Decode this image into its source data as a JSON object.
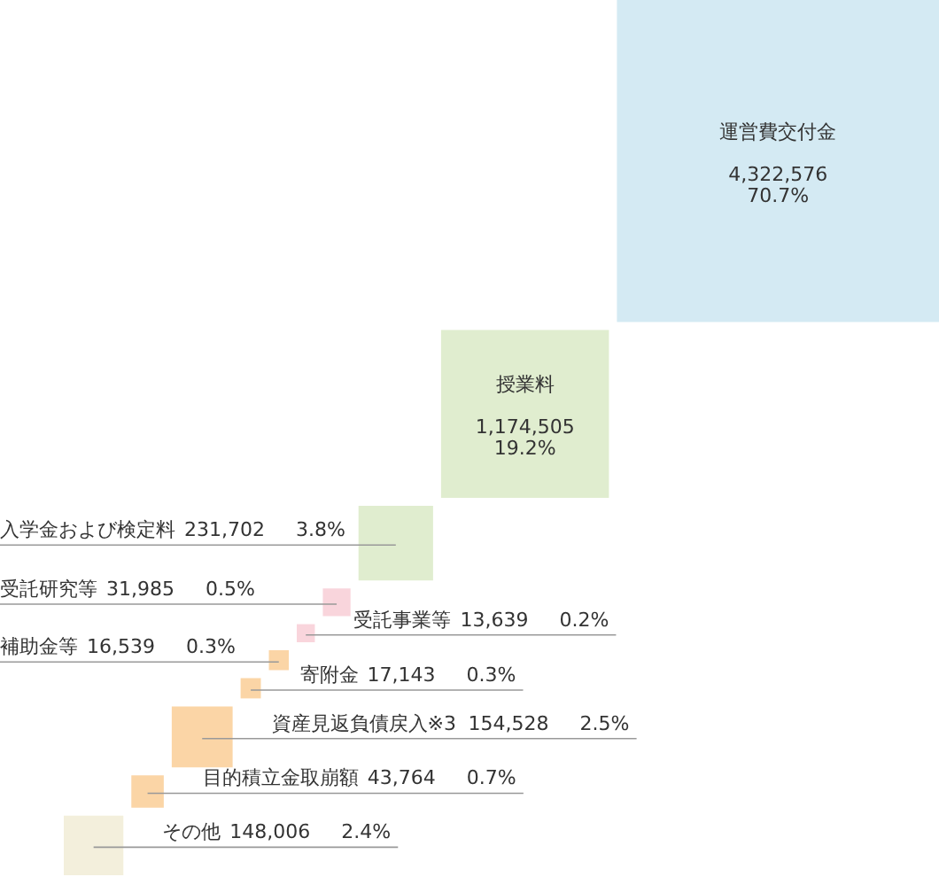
{
  "chart_data": {
    "type": "other",
    "categories": [
      "運営費交付金",
      "授業料",
      "入学金および検定料",
      "受託研究等",
      "受託事業等",
      "補助金等",
      "寄附金",
      "資産見返負債戻入※3",
      "目的積立金取崩額",
      "その他"
    ],
    "values": [
      4322576,
      1174505,
      231702,
      31985,
      13639,
      16539,
      17143,
      154528,
      43764,
      148006
    ],
    "value_labels": [
      "4,322,576",
      "1,174,505",
      "231,702",
      "31,985",
      "13,639",
      "16,539",
      "17,143",
      "154,528",
      "43,764",
      "148,006"
    ],
    "annotations": [
      "70.7%",
      "19.2%",
      "3.8%",
      "0.5%",
      "0.2%",
      "0.3%",
      "0.3%",
      "2.5%",
      "0.7%",
      "2.4%"
    ],
    "colors": [
      "#d4eaf3",
      "#e0edcf",
      "#e0edcf",
      "#f9d5dc",
      "#f9d5dc",
      "#fbd5a6",
      "#fbd5a6",
      "#fbd5a6",
      "#fbd5a6",
      "#f3efdc"
    ]
  }
}
